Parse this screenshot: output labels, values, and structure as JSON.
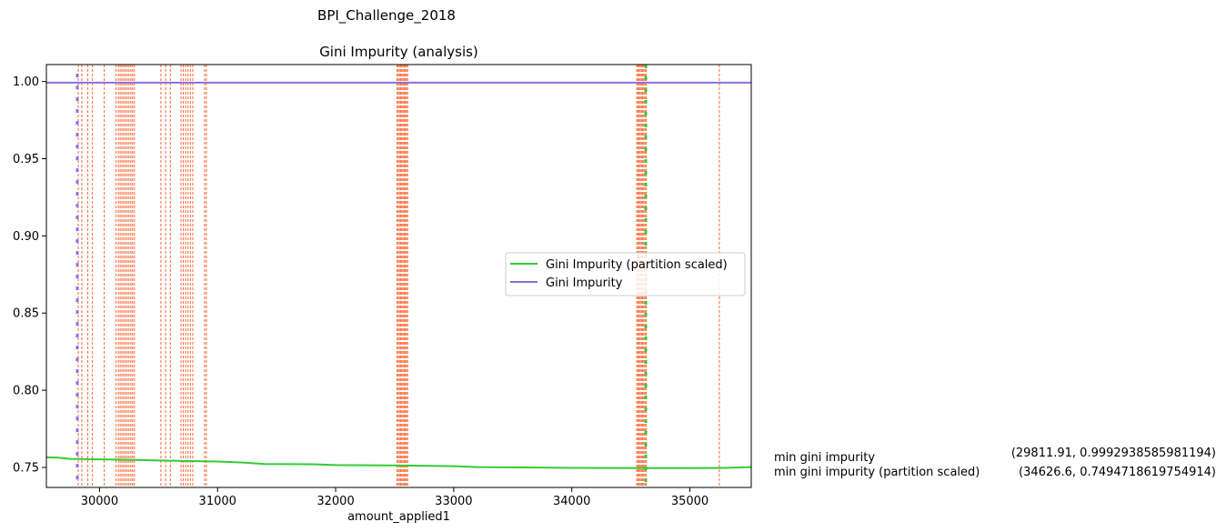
{
  "figure_title": "BPI_Challenge_2018",
  "chart_data": {
    "type": "line",
    "title": "Gini Impurity (analysis)",
    "xlabel": "amount_applied1",
    "ylabel": "",
    "xlim": [
      29550,
      35520
    ],
    "ylim": [
      0.737,
      1.011
    ],
    "x_ticks": [
      30000,
      31000,
      32000,
      33000,
      34000,
      35000
    ],
    "y_ticks": [
      0.75,
      0.8,
      0.85,
      0.9,
      0.95,
      1.0
    ],
    "y_tick_labels": [
      "0.75",
      "0.80",
      "0.85",
      "0.90",
      "0.95",
      "1.00"
    ],
    "grid": false,
    "legend_position": "center-right",
    "series": [
      {
        "name": "Gini Impurity (partition scaled)",
        "color": "#33cc33",
        "x": [
          29550,
          29650,
          29750,
          30000,
          30300,
          30600,
          31000,
          31200,
          31400,
          31800,
          32000,
          32600,
          33000,
          33200,
          33600,
          34000,
          34626.6,
          35000,
          35300,
          35520
        ],
        "y": [
          0.7565,
          0.7563,
          0.7555,
          0.7552,
          0.7548,
          0.7543,
          0.7538,
          0.7532,
          0.7522,
          0.752,
          0.7515,
          0.7512,
          0.7508,
          0.7502,
          0.75,
          0.7497,
          0.7495,
          0.7495,
          0.7497,
          0.7502
        ]
      },
      {
        "name": "Gini Impurity",
        "color": "#8c6ee0",
        "x": [
          29550,
          35520
        ],
        "y": [
          0.9993,
          0.9993
        ]
      }
    ],
    "split_lines": {
      "color": "#ff6633",
      "x": [
        29820,
        29850,
        29900,
        29940,
        30040,
        30140,
        30160,
        30175,
        30190,
        30205,
        30220,
        30235,
        30250,
        30265,
        30280,
        30295,
        30520,
        30560,
        30600,
        30690,
        30710,
        30730,
        30750,
        30770,
        30790,
        30890,
        30905,
        32520,
        32530,
        32540,
        32550,
        32560,
        32570,
        32580,
        32590,
        32600,
        32610,
        34550,
        34560,
        34570,
        34580,
        34590,
        34600,
        34610,
        34620,
        34630,
        35250
      ]
    },
    "min_markers": [
      {
        "x": 29811.91,
        "color": "#8c6ee0",
        "y_from": 0.737,
        "y_to": 1.005
      },
      {
        "x": 34626.6,
        "color": "#33cc33",
        "y_from": 0.737,
        "y_to": 1.011
      }
    ],
    "annotations": [
      {
        "label": "min gini impurity",
        "value": "(29811.91, 0.9992938585981194)"
      },
      {
        "label": "min gini impurity (partition scaled)",
        "value": "(34626.6, 0.7494718619754914)"
      }
    ]
  }
}
